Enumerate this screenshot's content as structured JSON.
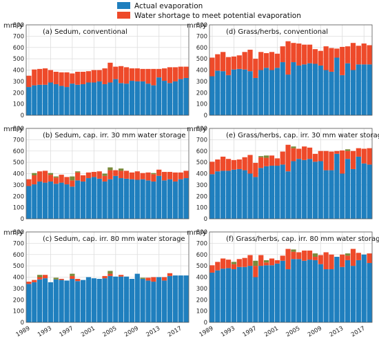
{
  "chart_data": {
    "type": "bar",
    "stacked": true,
    "unit_label": "mm/y",
    "ylim": [
      0,
      800
    ],
    "yticks": [
      0,
      100,
      200,
      300,
      400,
      500,
      600,
      700,
      800
    ],
    "x": [
      1989,
      1990,
      1991,
      1992,
      1993,
      1994,
      1995,
      1996,
      1997,
      1998,
      1999,
      2000,
      2001,
      2002,
      2003,
      2004,
      2005,
      2006,
      2007,
      2008,
      2009,
      2010,
      2011,
      2012,
      2013,
      2014,
      2015,
      2016,
      2017,
      2018
    ],
    "xticks": [
      1989,
      1993,
      1997,
      2001,
      2005,
      2009,
      2013,
      2017
    ],
    "grid": true,
    "legend": {
      "placement": "top-center",
      "items": [
        {
          "label": "Actual evaporation",
          "color": "#1f7fbe"
        },
        {
          "label": "Water shortage to meet potential evaporation",
          "color": "#ee4a2a"
        }
      ]
    },
    "colors": {
      "actual": "#1f7fbe",
      "shortage": "#ee4a2a",
      "extra": "#7a8a3a",
      "grid": "#dddddd"
    },
    "panels": [
      {
        "title": "(a) Sedum, conventional",
        "actual": [
          250,
          265,
          270,
          270,
          290,
          275,
          260,
          250,
          280,
          270,
          275,
          290,
          290,
          300,
          275,
          290,
          320,
          285,
          280,
          305,
          300,
          300,
          280,
          265,
          335,
          305,
          285,
          300,
          320,
          330
        ],
        "shortage": [
          100,
          140,
          140,
          145,
          110,
          110,
          120,
          130,
          90,
          115,
          110,
          100,
          110,
          100,
          140,
          175,
          110,
          150,
          145,
          110,
          115,
          110,
          130,
          145,
          75,
          110,
          140,
          125,
          110,
          100
        ]
      },
      {
        "title": "(d) Grass/herbs, conventional",
        "actual": [
          345,
          395,
          390,
          355,
          405,
          410,
          405,
          390,
          330,
          400,
          420,
          400,
          420,
          470,
          360,
          470,
          440,
          450,
          460,
          455,
          440,
          400,
          385,
          510,
          355,
          460,
          400,
          450,
          450,
          450
        ],
        "shortage": [
          165,
          145,
          170,
          160,
          115,
          120,
          155,
          190,
          170,
          160,
          130,
          160,
          125,
          140,
          295,
          170,
          195,
          175,
          165,
          130,
          130,
          210,
          210,
          80,
          250,
          150,
          240,
          165,
          185,
          170
        ]
      },
      {
        "title": "(b) Sedum, cap. irr. 30 mm water storage",
        "actual": [
          290,
          305,
          330,
          320,
          330,
          310,
          320,
          305,
          285,
          340,
          330,
          360,
          370,
          355,
          330,
          350,
          380,
          360,
          355,
          350,
          345,
          350,
          340,
          330,
          380,
          340,
          350,
          330,
          350,
          360
        ],
        "shortage": [
          60,
          80,
          90,
          105,
          60,
          55,
          70,
          65,
          55,
          70,
          55,
          50,
          45,
          65,
          50,
          80,
          50,
          65,
          70,
          60,
          75,
          55,
          70,
          65,
          55,
          75,
          65,
          80,
          60,
          65
        ],
        "extra": [
          0,
          20,
          0,
          0,
          15,
          10,
          0,
          0,
          35,
          10,
          0,
          0,
          0,
          0,
          20,
          25,
          0,
          20,
          0,
          0,
          0,
          0,
          0,
          10,
          0,
          0,
          0,
          0,
          0,
          0
        ]
      },
      {
        "title": "(e) Grass/herbs, cap. irr. 30 mm water storage",
        "actual": [
          395,
          420,
          425,
          425,
          435,
          440,
          430,
          400,
          370,
          450,
          465,
          470,
          470,
          480,
          420,
          510,
          530,
          520,
          530,
          505,
          510,
          430,
          430,
          575,
          400,
          530,
          440,
          550,
          490,
          480
        ],
        "shortage": [
          110,
          105,
          125,
          105,
          85,
          85,
          115,
          165,
          125,
          95,
          75,
          90,
          65,
          115,
          235,
          115,
          90,
          120,
          100,
          70,
          90,
          170,
          165,
          25,
          205,
          70,
          160,
          75,
          130,
          145
        ],
        "extra": [
          0,
          0,
          0,
          0,
          0,
          0,
          0,
          0,
          0,
          10,
          20,
          0,
          0,
          0,
          0,
          15,
          0,
          0,
          0,
          0,
          0,
          0,
          0,
          0,
          0,
          15,
          0,
          0,
          0,
          0
        ]
      },
      {
        "title": "(c) Sedum, cap. irr. 80 mm water storage",
        "actual": [
          340,
          355,
          380,
          390,
          355,
          380,
          375,
          370,
          385,
          365,
          375,
          400,
          390,
          385,
          390,
          410,
          405,
          405,
          405,
          385,
          430,
          385,
          370,
          360,
          400,
          370,
          410,
          415,
          415,
          415
        ],
        "shortage": [
          20,
          20,
          20,
          30,
          0,
          0,
          10,
          0,
          25,
          20,
          0,
          0,
          0,
          0,
          20,
          20,
          0,
          15,
          0,
          0,
          0,
          0,
          25,
          40,
          0,
          30,
          25,
          0,
          0,
          0
        ],
        "extra": [
          0,
          0,
          20,
          0,
          0,
          15,
          0,
          0,
          20,
          0,
          0,
          0,
          0,
          0,
          0,
          25,
          0,
          0,
          0,
          0,
          0,
          10,
          0,
          0,
          0,
          0,
          0,
          0,
          0,
          0
        ]
      },
      {
        "title": "(f) Grass/herbs, cap. irr. 80 mm water storage",
        "actual": [
          440,
          460,
          475,
          480,
          470,
          490,
          490,
          500,
          400,
          500,
          505,
          505,
          520,
          545,
          470,
          560,
          560,
          545,
          555,
          550,
          515,
          470,
          470,
          580,
          490,
          550,
          500,
          550,
          600,
          525
        ],
        "shortage": [
          65,
          75,
          90,
          75,
          45,
          70,
          80,
          95,
          100,
          95,
          25,
          60,
          30,
          45,
          180,
          65,
          60,
          90,
          80,
          30,
          80,
          150,
          130,
          0,
          110,
          40,
          150,
          65,
          0,
          85
        ],
        "extra": [
          0,
          0,
          0,
          0,
          20,
          0,
          0,
          0,
          45,
          0,
          20,
          0,
          0,
          0,
          0,
          20,
          0,
          0,
          0,
          30,
          0,
          0,
          0,
          0,
          0,
          20,
          0,
          0,
          0,
          0
        ]
      }
    ]
  }
}
